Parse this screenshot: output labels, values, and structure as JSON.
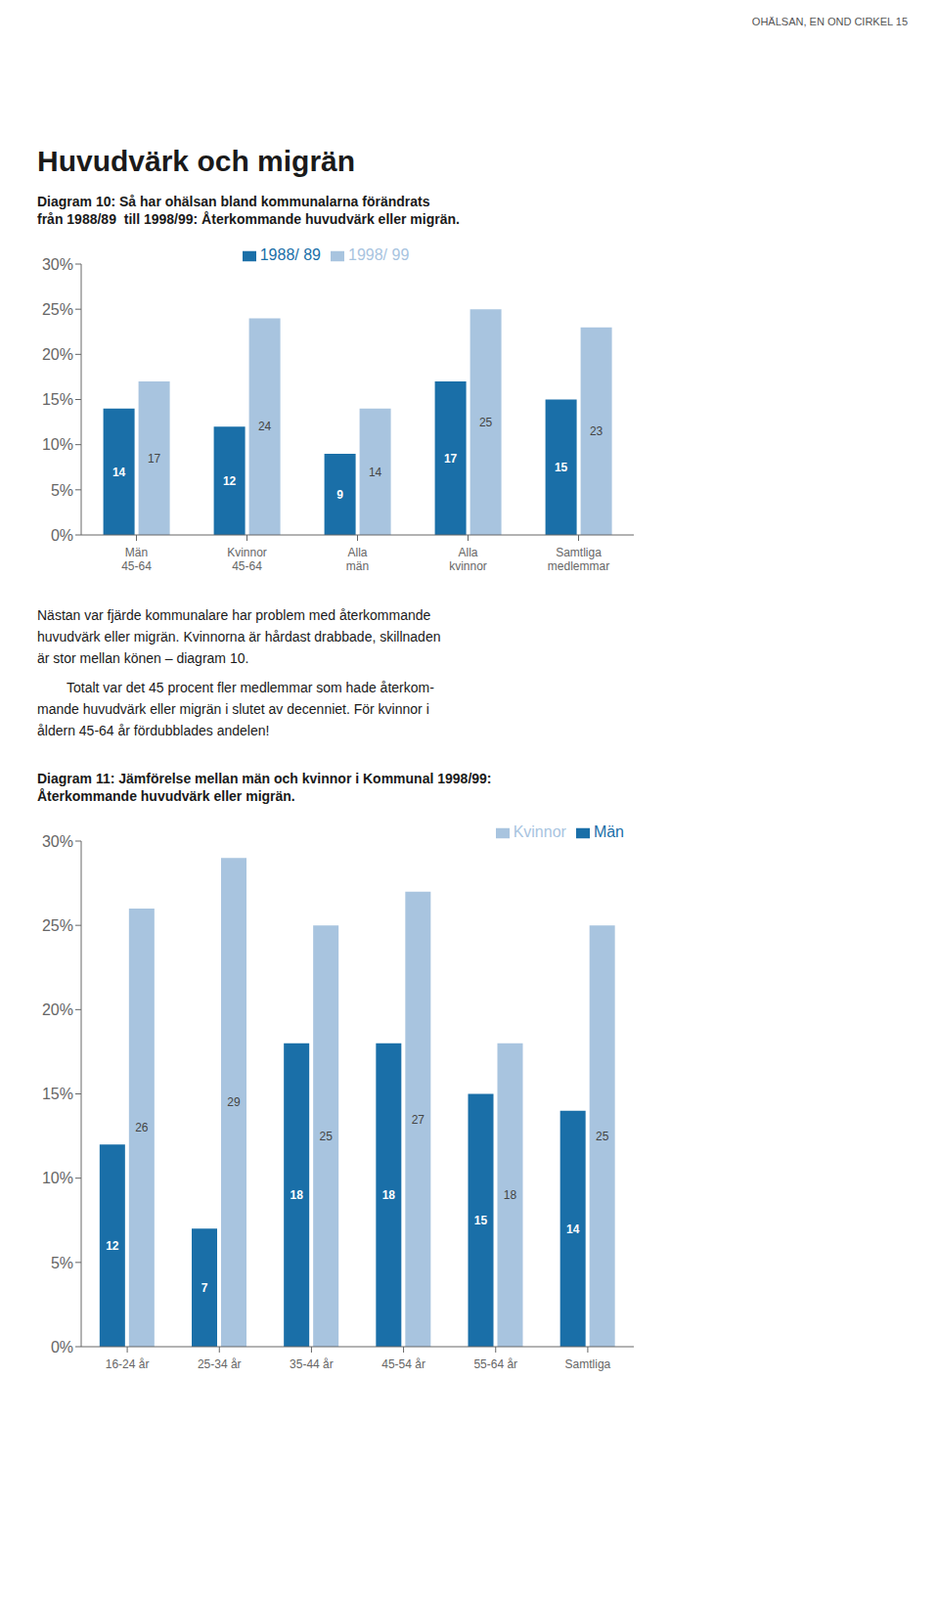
{
  "header": "OHÄLSAN, EN OND CIRKEL  15",
  "title": "Huvudvärk och migrän",
  "annotations": [
    "Nästan var fjärde kommunalare har problem med återkommande",
    "huvudvärk eller migrän. Kvinnorna är hårdast drabbade, skillnaden",
    "är stor mellan könen – diagram 10.",
    "Totalt var det 45 procent fler medlemmar som hade återkom-",
    "mande huvudvärk eller migrän i slutet av decenniet. För kvinnor i",
    "åldern 45-64 år fördubblades andelen!"
  ],
  "chart_data": [
    {
      "type": "bar",
      "title": "Diagram 10: Så har ohälsan bland kommunalarna förändrats",
      "subtitle": "från 1988/89  till 1998/99: Återkommande huvudvärk eller migrän.",
      "categories": [
        "Män\n45-64",
        "Kvinnor\n45-64",
        "Alla\nmän",
        "Alla\nkvinnor",
        "Samtliga\nmedlemmar"
      ],
      "series": [
        {
          "name": "1988/ 89",
          "color": "#1a6fa8",
          "values": [
            14,
            12,
            9,
            17,
            15
          ]
        },
        {
          "name": "1998/ 99",
          "color": "#a8c4df",
          "values": [
            17,
            24,
            14,
            25,
            23
          ]
        }
      ],
      "ylim": [
        0,
        30
      ],
      "yticks": [
        {
          "value": 0,
          "label": "0%"
        },
        {
          "value": 5,
          "label": "5%"
        },
        {
          "value": 10,
          "label": "10%"
        },
        {
          "value": 15,
          "label": "15%"
        },
        {
          "value": 20,
          "label": "20%"
        },
        {
          "value": 25,
          "label": "25%"
        },
        {
          "value": 30,
          "label": "30%"
        }
      ],
      "grid": false,
      "legend": "upper center",
      "data_labels": true
    },
    {
      "type": "bar",
      "title": "Diagram 11: Jämförelse mellan män och kvinnor i Kommunal 1998/99:",
      "subtitle": "Återkommande huvudvärk eller migrän.",
      "categories": [
        "16-24 år",
        "25-34 år",
        "35-44 år",
        "45-54 år",
        "55-64 år",
        "Samtliga"
      ],
      "series": [
        {
          "name": "Män",
          "color": "#1a6fa8",
          "values": [
            12,
            7,
            18,
            18,
            15,
            14
          ]
        },
        {
          "name": "Kvinnor",
          "color": "#a8c4df",
          "values": [
            26,
            29,
            25,
            27,
            18,
            25
          ]
        }
      ],
      "ylim": [
        0,
        30
      ],
      "yticks": [
        {
          "value": 0,
          "label": "0%"
        },
        {
          "value": 5,
          "label": "5%"
        },
        {
          "value": 10,
          "label": "10%"
        },
        {
          "value": 15,
          "label": "15%"
        },
        {
          "value": 20,
          "label": "20%"
        },
        {
          "value": 25,
          "label": "25%"
        },
        {
          "value": 30,
          "label": "30%"
        }
      ],
      "grid": false,
      "legend": "upper right",
      "data_labels": true
    }
  ]
}
